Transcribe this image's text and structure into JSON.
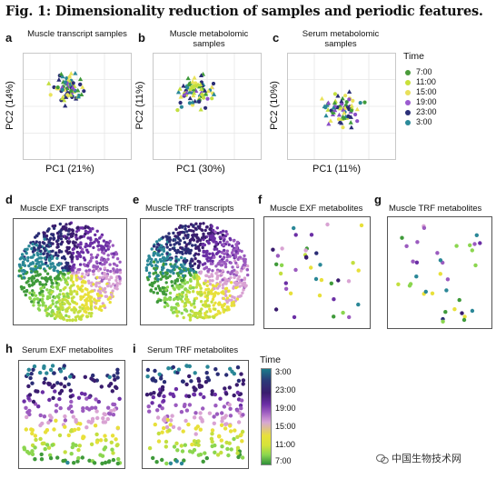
{
  "figure_title": "Fig. 1: Dimensionality reduction of samples and periodic features.",
  "panels": {
    "a": {
      "letter": "a",
      "title": "Muscle transcript samples",
      "xlabel": "PC1 (21%)",
      "ylabel": "PC2 (14%)"
    },
    "b": {
      "letter": "b",
      "title": "Muscle metabolomic samples",
      "xlabel": "PC1 (30%)",
      "ylabel": "PC2 (11%)"
    },
    "c": {
      "letter": "c",
      "title": "Serum metabolomic samples",
      "xlabel": "PC1 (11%)",
      "ylabel": "PC2 (10%)"
    },
    "d": {
      "letter": "d",
      "title": "Muscle EXF transcripts"
    },
    "e": {
      "letter": "e",
      "title": "Muscle TRF transcripts"
    },
    "f": {
      "letter": "f",
      "title": "Muscle EXF metabolites"
    },
    "g": {
      "letter": "g",
      "title": "Muscle TRF metabolites"
    },
    "h": {
      "letter": "h",
      "title": "Serum EXF metabolites"
    },
    "i": {
      "letter": "i",
      "title": "Serum TRF metabolites"
    }
  },
  "legend_top": {
    "title": "Time",
    "items": [
      {
        "label": "7:00",
        "color": "#4a9b3a"
      },
      {
        "label": "11:00",
        "color": "#c9e03a"
      },
      {
        "label": "15:00",
        "color": "#e8e05a"
      },
      {
        "label": "19:00",
        "color": "#9b5bd0"
      },
      {
        "label": "23:00",
        "color": "#2b2f78"
      },
      {
        "label": "3:00",
        "color": "#2b8a9a"
      }
    ]
  },
  "legend_bottom": {
    "title": "Time",
    "ticks": [
      "3:00",
      "23:00",
      "19:00",
      "15:00",
      "11:00",
      "7:00"
    ]
  },
  "watermark": "中国生物技术网",
  "colors": {
    "green": "#3f9a3a",
    "lime": "#c3df3f",
    "yellow": "#e9e35a",
    "purple": "#8a4fc7",
    "navy": "#2a2d75",
    "teal": "#2a8797",
    "pink": "#d9a3d3",
    "grid": "#e6e6e6",
    "frame": "#555555"
  }
}
